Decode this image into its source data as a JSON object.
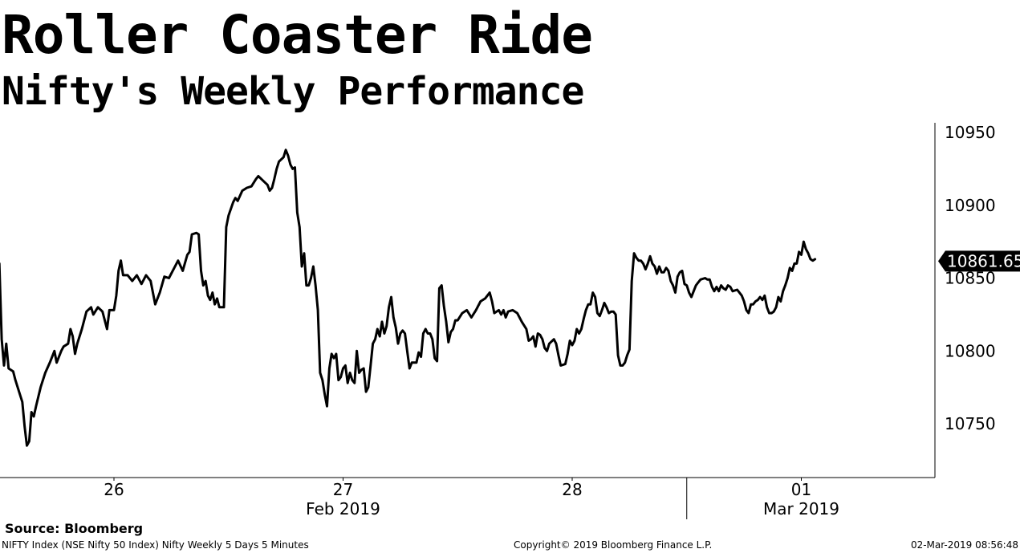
{
  "header": {
    "title": "Roller Coaster Ride",
    "subtitle": "Nifty's Weekly Performance"
  },
  "footer": {
    "source": "Source: Bloomberg",
    "description": "NIFTY Index (NSE Nifty 50 Index) Nifty Weekly 5 Days 5 Minutes",
    "copyright": "Copyright© 2019 Bloomberg Finance L.P.",
    "timestamp": "02-Mar-2019 08:56:48"
  },
  "colors": {
    "line": "#000000",
    "background": "#ffffff",
    "last_value_badge": "#000000",
    "last_value_text": "#ffffff"
  },
  "chart_data": {
    "type": "line",
    "title": "Roller Coaster Ride",
    "subtitle": "Nifty's Weekly Performance",
    "xlabel": "",
    "ylabel": "",
    "x_range": [
      0,
      4.22
    ],
    "ylim": [
      10719,
      10955
    ],
    "y_ticks": [
      10750,
      10800,
      10850,
      10900,
      10950
    ],
    "y_tick_labels": [
      "10750",
      "10800",
      "10850",
      "10900",
      "10950"
    ],
    "x_day_ticks": [
      {
        "x": 0.5,
        "label": "26"
      },
      {
        "x": 1.5,
        "label": "27"
      },
      {
        "x": 2.5,
        "label": "28"
      },
      {
        "x": 3.5,
        "label": "01"
      }
    ],
    "x_month_labels": [
      {
        "x": 1.5,
        "label": "Feb 2019"
      },
      {
        "x": 3.5,
        "label": "Mar 2019"
      }
    ],
    "month_separator_x": 3.0,
    "axis_position": "right",
    "grid": false,
    "last_value": 10861.65,
    "last_value_label": "10861.65",
    "series": [
      {
        "name": "NIFTY Index",
        "points": [
          [
            0.0,
            10860
          ],
          [
            0.01,
            10808
          ],
          [
            0.02,
            10790
          ],
          [
            0.03,
            10805
          ],
          [
            0.04,
            10788
          ],
          [
            0.06,
            10786
          ],
          [
            0.07,
            10780
          ],
          [
            0.09,
            10770
          ],
          [
            0.1,
            10765
          ],
          [
            0.11,
            10748
          ],
          [
            0.12,
            10735
          ],
          [
            0.13,
            10738
          ],
          [
            0.14,
            10758
          ],
          [
            0.15,
            10755
          ],
          [
            0.16,
            10762
          ],
          [
            0.18,
            10775
          ],
          [
            0.2,
            10785
          ],
          [
            0.22,
            10792
          ],
          [
            0.24,
            10800
          ],
          [
            0.25,
            10792
          ],
          [
            0.27,
            10800
          ],
          [
            0.28,
            10803
          ],
          [
            0.3,
            10805
          ],
          [
            0.31,
            10815
          ],
          [
            0.32,
            10810
          ],
          [
            0.33,
            10798
          ],
          [
            0.34,
            10805
          ],
          [
            0.36,
            10815
          ],
          [
            0.38,
            10827
          ],
          [
            0.4,
            10830
          ],
          [
            0.41,
            10825
          ],
          [
            0.43,
            10830
          ],
          [
            0.45,
            10827
          ],
          [
            0.47,
            10815
          ],
          [
            0.48,
            10828
          ],
          [
            0.5,
            10828
          ],
          [
            0.51,
            10838
          ],
          [
            0.52,
            10855
          ],
          [
            0.53,
            10862
          ],
          [
            0.54,
            10852
          ],
          [
            0.56,
            10852
          ],
          [
            0.58,
            10848
          ],
          [
            0.6,
            10852
          ],
          [
            0.62,
            10846
          ],
          [
            0.64,
            10852
          ],
          [
            0.66,
            10848
          ],
          [
            0.68,
            10832
          ],
          [
            0.7,
            10840
          ],
          [
            0.72,
            10851
          ],
          [
            0.74,
            10850
          ],
          [
            0.76,
            10856
          ],
          [
            0.78,
            10862
          ],
          [
            0.8,
            10855
          ],
          [
            0.82,
            10866
          ],
          [
            0.83,
            10868
          ],
          [
            0.84,
            10880
          ],
          [
            0.86,
            10881
          ],
          [
            0.87,
            10880
          ],
          [
            0.88,
            10855
          ],
          [
            0.89,
            10845
          ],
          [
            0.9,
            10848
          ],
          [
            0.91,
            10838
          ],
          [
            0.92,
            10835
          ],
          [
            0.93,
            10840
          ],
          [
            0.94,
            10832
          ],
          [
            0.95,
            10836
          ],
          [
            0.96,
            10830
          ],
          [
            0.97,
            10830
          ],
          [
            0.98,
            10830
          ],
          [
            0.99,
            10885
          ],
          [
            1.0,
            10893
          ],
          [
            1.02,
            10902
          ],
          [
            1.03,
            10905
          ],
          [
            1.04,
            10903
          ],
          [
            1.06,
            10910
          ],
          [
            1.08,
            10912
          ],
          [
            1.1,
            10913
          ],
          [
            1.12,
            10918
          ],
          [
            1.13,
            10920
          ],
          [
            1.15,
            10917
          ],
          [
            1.17,
            10914
          ],
          [
            1.18,
            10910
          ],
          [
            1.19,
            10912
          ],
          [
            1.2,
            10918
          ],
          [
            1.21,
            10925
          ],
          [
            1.22,
            10930
          ],
          [
            1.24,
            10933
          ],
          [
            1.25,
            10938
          ],
          [
            1.26,
            10934
          ],
          [
            1.27,
            10928
          ],
          [
            1.28,
            10925
          ],
          [
            1.29,
            10926
          ],
          [
            1.3,
            10895
          ],
          [
            1.31,
            10885
          ],
          [
            1.32,
            10858
          ],
          [
            1.33,
            10867
          ],
          [
            1.34,
            10845
          ],
          [
            1.35,
            10845
          ],
          [
            1.36,
            10850
          ],
          [
            1.37,
            10858
          ],
          [
            1.38,
            10845
          ],
          [
            1.39,
            10828
          ],
          [
            1.4,
            10785
          ],
          [
            1.41,
            10780
          ],
          [
            1.42,
            10770
          ],
          [
            1.43,
            10762
          ],
          [
            1.44,
            10788
          ],
          [
            1.45,
            10798
          ],
          [
            1.46,
            10795
          ],
          [
            1.47,
            10798
          ],
          [
            1.48,
            10780
          ],
          [
            1.49,
            10782
          ],
          [
            1.5,
            10788
          ],
          [
            1.51,
            10790
          ],
          [
            1.52,
            10778
          ],
          [
            1.53,
            10785
          ],
          [
            1.54,
            10780
          ],
          [
            1.55,
            10778
          ],
          [
            1.56,
            10800
          ],
          [
            1.57,
            10785
          ],
          [
            1.58,
            10787
          ],
          [
            1.59,
            10788
          ],
          [
            1.6,
            10772
          ],
          [
            1.61,
            10775
          ],
          [
            1.62,
            10790
          ],
          [
            1.63,
            10805
          ],
          [
            1.64,
            10808
          ],
          [
            1.65,
            10815
          ],
          [
            1.66,
            10810
          ],
          [
            1.67,
            10820
          ],
          [
            1.68,
            10812
          ],
          [
            1.69,
            10817
          ],
          [
            1.7,
            10830
          ],
          [
            1.71,
            10837
          ],
          [
            1.72,
            10823
          ],
          [
            1.73,
            10816
          ],
          [
            1.74,
            10805
          ],
          [
            1.75,
            10812
          ],
          [
            1.76,
            10814
          ],
          [
            1.77,
            10812
          ],
          [
            1.78,
            10800
          ],
          [
            1.79,
            10788
          ],
          [
            1.8,
            10792
          ],
          [
            1.81,
            10792
          ],
          [
            1.82,
            10792
          ],
          [
            1.83,
            10799
          ],
          [
            1.84,
            10796
          ],
          [
            1.85,
            10812
          ],
          [
            1.86,
            10815
          ],
          [
            1.87,
            10812
          ],
          [
            1.88,
            10812
          ],
          [
            1.89,
            10808
          ],
          [
            1.9,
            10795
          ],
          [
            1.91,
            10793
          ],
          [
            1.92,
            10843
          ],
          [
            1.93,
            10845
          ],
          [
            1.94,
            10831
          ],
          [
            1.95,
            10820
          ],
          [
            1.96,
            10806
          ],
          [
            1.97,
            10813
          ],
          [
            1.98,
            10815
          ],
          [
            1.99,
            10821
          ],
          [
            2.0,
            10821
          ],
          [
            2.02,
            10826
          ],
          [
            2.04,
            10828
          ],
          [
            2.06,
            10823
          ],
          [
            2.08,
            10828
          ],
          [
            2.1,
            10834
          ],
          [
            2.12,
            10836
          ],
          [
            2.14,
            10840
          ],
          [
            2.15,
            10834
          ],
          [
            2.16,
            10826
          ],
          [
            2.18,
            10828
          ],
          [
            2.19,
            10825
          ],
          [
            2.2,
            10828
          ],
          [
            2.21,
            10823
          ],
          [
            2.22,
            10827
          ],
          [
            2.24,
            10828
          ],
          [
            2.26,
            10826
          ],
          [
            2.28,
            10820
          ],
          [
            2.3,
            10815
          ],
          [
            2.31,
            10807
          ],
          [
            2.32,
            10808
          ],
          [
            2.33,
            10810
          ],
          [
            2.34,
            10803
          ],
          [
            2.35,
            10812
          ],
          [
            2.36,
            10811
          ],
          [
            2.37,
            10808
          ],
          [
            2.38,
            10802
          ],
          [
            2.39,
            10800
          ],
          [
            2.4,
            10805
          ],
          [
            2.42,
            10808
          ],
          [
            2.43,
            10805
          ],
          [
            2.44,
            10797
          ],
          [
            2.45,
            10790
          ],
          [
            2.47,
            10791
          ],
          [
            2.48,
            10798
          ],
          [
            2.49,
            10807
          ],
          [
            2.5,
            10804
          ],
          [
            2.51,
            10807
          ],
          [
            2.52,
            10815
          ],
          [
            2.53,
            10812
          ],
          [
            2.54,
            10815
          ],
          [
            2.55,
            10822
          ],
          [
            2.56,
            10828
          ],
          [
            2.57,
            10832
          ],
          [
            2.58,
            10832
          ],
          [
            2.59,
            10840
          ],
          [
            2.6,
            10837
          ],
          [
            2.61,
            10826
          ],
          [
            2.62,
            10824
          ],
          [
            2.63,
            10828
          ],
          [
            2.64,
            10833
          ],
          [
            2.65,
            10830
          ],
          [
            2.66,
            10826
          ],
          [
            2.67,
            10827
          ],
          [
            2.68,
            10827
          ],
          [
            2.69,
            10825
          ],
          [
            2.7,
            10797
          ],
          [
            2.71,
            10790
          ],
          [
            2.72,
            10790
          ],
          [
            2.73,
            10792
          ],
          [
            2.74,
            10797
          ],
          [
            2.75,
            10801
          ],
          [
            2.76,
            10848
          ],
          [
            2.77,
            10867
          ],
          [
            2.78,
            10864
          ],
          [
            2.79,
            10862
          ],
          [
            2.8,
            10862
          ],
          [
            2.81,
            10860
          ],
          [
            2.82,
            10856
          ],
          [
            2.83,
            10860
          ],
          [
            2.84,
            10865
          ],
          [
            2.85,
            10860
          ],
          [
            2.86,
            10858
          ],
          [
            2.87,
            10853
          ],
          [
            2.88,
            10858
          ],
          [
            2.89,
            10854
          ],
          [
            2.9,
            10854
          ],
          [
            2.91,
            10857
          ],
          [
            2.92,
            10855
          ],
          [
            2.93,
            10848
          ],
          [
            2.94,
            10845
          ],
          [
            2.95,
            10840
          ],
          [
            2.96,
            10851
          ],
          [
            2.97,
            10854
          ],
          [
            2.98,
            10855
          ],
          [
            2.99,
            10846
          ],
          [
            3.0,
            10845
          ],
          [
            3.01,
            10840
          ],
          [
            3.02,
            10837
          ],
          [
            3.04,
            10845
          ],
          [
            3.05,
            10847
          ],
          [
            3.06,
            10849
          ],
          [
            3.08,
            10850
          ],
          [
            3.09,
            10849
          ],
          [
            3.1,
            10849
          ],
          [
            3.11,
            10844
          ],
          [
            3.12,
            10841
          ],
          [
            3.13,
            10844
          ],
          [
            3.14,
            10841
          ],
          [
            3.15,
            10845
          ],
          [
            3.16,
            10843
          ],
          [
            3.17,
            10842
          ],
          [
            3.18,
            10845
          ],
          [
            3.19,
            10844
          ],
          [
            3.2,
            10841
          ],
          [
            3.22,
            10842
          ],
          [
            3.23,
            10840
          ],
          [
            3.24,
            10838
          ],
          [
            3.25,
            10834
          ],
          [
            3.26,
            10828
          ],
          [
            3.27,
            10826
          ],
          [
            3.28,
            10832
          ],
          [
            3.29,
            10832
          ],
          [
            3.3,
            10834
          ],
          [
            3.31,
            10835
          ],
          [
            3.32,
            10837
          ],
          [
            3.33,
            10835
          ],
          [
            3.34,
            10838
          ],
          [
            3.35,
            10830
          ],
          [
            3.36,
            10826
          ],
          [
            3.37,
            10826
          ],
          [
            3.38,
            10827
          ],
          [
            3.39,
            10830
          ],
          [
            3.4,
            10837
          ],
          [
            3.41,
            10834
          ],
          [
            3.42,
            10841
          ],
          [
            3.43,
            10845
          ],
          [
            3.44,
            10850
          ],
          [
            3.45,
            10857
          ],
          [
            3.46,
            10855
          ],
          [
            3.47,
            10860
          ],
          [
            3.48,
            10860
          ],
          [
            3.49,
            10868
          ],
          [
            3.5,
            10866
          ],
          [
            3.51,
            10875
          ],
          [
            3.52,
            10870
          ],
          [
            3.53,
            10867
          ],
          [
            3.54,
            10863
          ],
          [
            3.55,
            10862
          ],
          [
            3.56,
            10863
          ]
        ]
      }
    ]
  }
}
